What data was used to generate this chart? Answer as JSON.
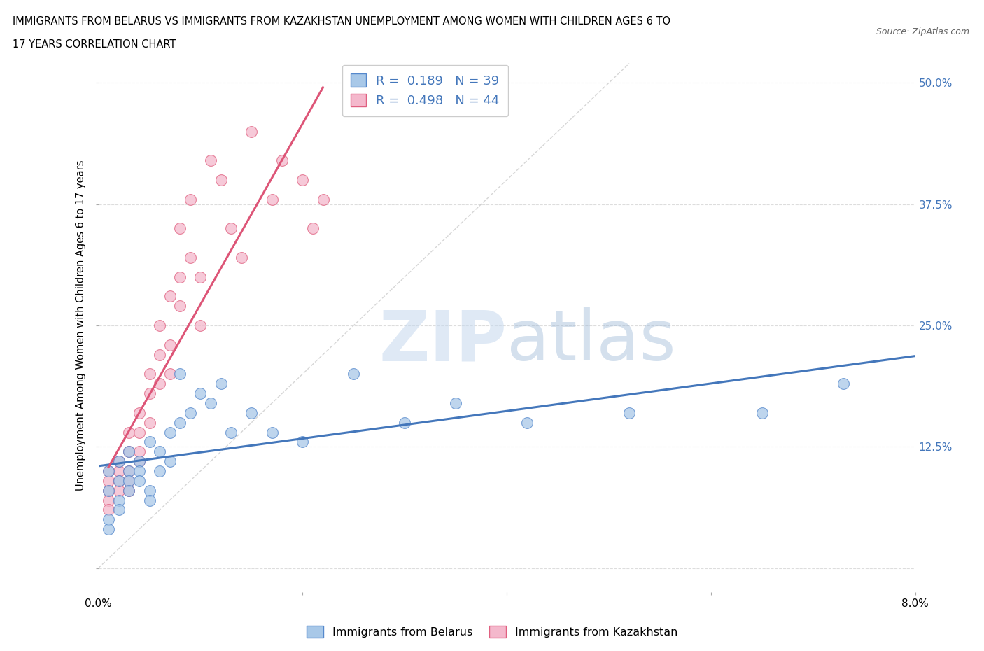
{
  "title_line1": "IMMIGRANTS FROM BELARUS VS IMMIGRANTS FROM KAZAKHSTAN UNEMPLOYMENT AMONG WOMEN WITH CHILDREN AGES 6 TO",
  "title_line2": "17 YEARS CORRELATION CHART",
  "source": "Source: ZipAtlas.com",
  "ylabel": "Unemployment Among Women with Children Ages 6 to 17 years",
  "watermark": "ZIPatlas",
  "xlim": [
    0.0,
    0.08
  ],
  "ylim": [
    -0.025,
    0.525
  ],
  "yticks": [
    0.0,
    0.125,
    0.25,
    0.375,
    0.5
  ],
  "ytick_labels_right": [
    "",
    "12.5%",
    "25.0%",
    "37.5%",
    "50.0%"
  ],
  "belarus_color": "#a8c8e8",
  "kazakhstan_color": "#f4b8cc",
  "belarus_edge_color": "#5588cc",
  "kazakhstan_edge_color": "#e06080",
  "belarus_line_color": "#4477bb",
  "kazakhstan_line_color": "#dd5577",
  "diag_line_color": "#cccccc",
  "legend_text_color": "#4477bb",
  "legend_label1": "Immigrants from Belarus",
  "legend_label2": "Immigrants from Kazakhstan",
  "R_belarus": 0.189,
  "N_belarus": 39,
  "R_kazakhstan": 0.498,
  "N_kazakhstan": 44,
  "belarus_x": [
    0.001,
    0.001,
    0.001,
    0.001,
    0.002,
    0.002,
    0.002,
    0.002,
    0.003,
    0.003,
    0.003,
    0.003,
    0.004,
    0.004,
    0.004,
    0.005,
    0.005,
    0.005,
    0.006,
    0.006,
    0.007,
    0.007,
    0.008,
    0.008,
    0.009,
    0.01,
    0.011,
    0.012,
    0.013,
    0.015,
    0.017,
    0.02,
    0.025,
    0.03,
    0.035,
    0.042,
    0.052,
    0.065,
    0.073
  ],
  "belarus_y": [
    0.05,
    0.08,
    0.1,
    0.04,
    0.09,
    0.11,
    0.07,
    0.06,
    0.1,
    0.09,
    0.12,
    0.08,
    0.11,
    0.1,
    0.09,
    0.13,
    0.08,
    0.07,
    0.1,
    0.12,
    0.14,
    0.11,
    0.2,
    0.15,
    0.16,
    0.18,
    0.17,
    0.19,
    0.14,
    0.16,
    0.14,
    0.13,
    0.2,
    0.15,
    0.17,
    0.15,
    0.16,
    0.16,
    0.19
  ],
  "kazakhstan_x": [
    0.001,
    0.001,
    0.001,
    0.001,
    0.001,
    0.002,
    0.002,
    0.002,
    0.002,
    0.003,
    0.003,
    0.003,
    0.003,
    0.003,
    0.004,
    0.004,
    0.004,
    0.004,
    0.005,
    0.005,
    0.005,
    0.006,
    0.006,
    0.006,
    0.007,
    0.007,
    0.007,
    0.008,
    0.008,
    0.008,
    0.009,
    0.009,
    0.01,
    0.01,
    0.011,
    0.012,
    0.013,
    0.014,
    0.015,
    0.017,
    0.018,
    0.02,
    0.021,
    0.022
  ],
  "kazakhstan_y": [
    0.08,
    0.07,
    0.09,
    0.1,
    0.06,
    0.1,
    0.09,
    0.11,
    0.08,
    0.12,
    0.1,
    0.09,
    0.14,
    0.08,
    0.16,
    0.14,
    0.12,
    0.11,
    0.18,
    0.2,
    0.15,
    0.22,
    0.19,
    0.25,
    0.28,
    0.23,
    0.2,
    0.35,
    0.3,
    0.27,
    0.32,
    0.38,
    0.3,
    0.25,
    0.42,
    0.4,
    0.35,
    0.32,
    0.45,
    0.38,
    0.42,
    0.4,
    0.35,
    0.38
  ]
}
